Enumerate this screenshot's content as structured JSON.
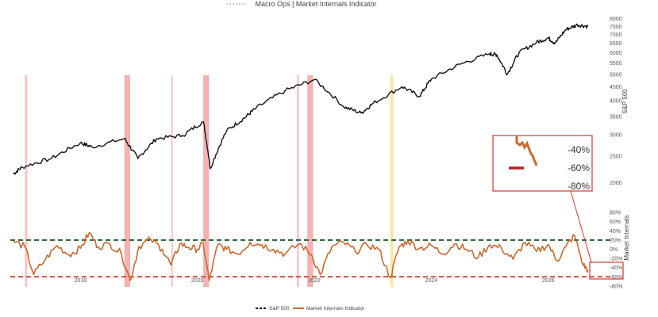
{
  "chart_data": {
    "type": "line",
    "title": "Macro Ops | Market Internals Indicator",
    "x_tick_labels": [
      "2018",
      "2020",
      "2022",
      "2024",
      "2026"
    ],
    "x_range": [
      2016.8,
      2026.9
    ],
    "panels": {
      "top": {
        "ylabel": "S&P 500",
        "scale": "log",
        "ylim": [
          1900,
          8200
        ],
        "tick_labels": [
          "8000",
          "7500",
          "7000",
          "6500",
          "6000",
          "5500",
          "5000",
          "4500",
          "4000",
          "3500",
          "3000",
          "2500",
          "2000"
        ]
      },
      "bottom": {
        "ylabel": "Market Internals",
        "ylim": [
          -82,
          82
        ],
        "tick_labels": [
          "80%",
          "60%",
          "40%",
          "20%",
          "0%",
          "-20%",
          "-40%",
          "-60%",
          "-80%"
        ],
        "threshold_lines": [
          {
            "value": 20,
            "color": "#1e5a28",
            "style": "dashed"
          },
          {
            "value": -60,
            "color": "#c0392b",
            "style": "dashed"
          }
        ]
      }
    },
    "series": [
      {
        "name": "S&P 500",
        "panel": "top",
        "color": "#111111",
        "x": [
          2016.85,
          2017.0,
          2017.5,
          2018.0,
          2018.2,
          2018.75,
          2018.98,
          2019.3,
          2019.75,
          2020.1,
          2020.22,
          2020.5,
          2020.8,
          2021.0,
          2021.5,
          2022.0,
          2022.5,
          2022.8,
          2023.0,
          2023.5,
          2023.8,
          2024.0,
          2024.5,
          2025.0,
          2025.12,
          2025.3,
          2025.5,
          2025.8,
          2026.0,
          2026.12,
          2026.3,
          2026.5,
          2026.68
        ],
        "y": [
          2150,
          2280,
          2450,
          2800,
          2700,
          2900,
          2450,
          2900,
          2980,
          3350,
          2250,
          3100,
          3450,
          3750,
          4350,
          4780,
          3800,
          3600,
          3900,
          4500,
          4150,
          4800,
          5450,
          5950,
          5900,
          5000,
          6000,
          6550,
          6800,
          6500,
          7300,
          7600,
          7500
        ]
      },
      {
        "name": "Market Internals Indicator",
        "panel": "bottom",
        "color": "#c8692e",
        "x": [
          2016.85,
          2017.05,
          2017.2,
          2017.4,
          2017.6,
          2017.8,
          2018.0,
          2018.15,
          2018.3,
          2018.5,
          2018.7,
          2018.85,
          2019.0,
          2019.2,
          2019.4,
          2019.55,
          2019.7,
          2019.85,
          2020.0,
          2020.1,
          2020.2,
          2020.35,
          2020.5,
          2020.7,
          2020.9,
          2021.1,
          2021.3,
          2021.5,
          2021.75,
          2021.95,
          2022.1,
          2022.3,
          2022.5,
          2022.7,
          2022.9,
          2023.1,
          2023.3,
          2023.45,
          2023.6,
          2023.8,
          2024.0,
          2024.2,
          2024.4,
          2024.6,
          2024.8,
          2025.0,
          2025.2,
          2025.4,
          2025.6,
          2025.8,
          2026.0,
          2026.15,
          2026.3,
          2026.45,
          2026.6,
          2026.68
        ],
        "y": [
          18,
          5,
          -55,
          -22,
          8,
          -12,
          2,
          36,
          5,
          12,
          -10,
          -68,
          6,
          22,
          0,
          -35,
          12,
          4,
          0,
          12,
          -68,
          10,
          0,
          -10,
          15,
          10,
          0,
          -10,
          12,
          -12,
          -55,
          5,
          15,
          -5,
          10,
          0,
          -62,
          5,
          18,
          2,
          8,
          -10,
          12,
          0,
          -18,
          10,
          2,
          -22,
          15,
          -5,
          10,
          -25,
          5,
          30,
          -35,
          -45
        ]
      }
    ],
    "highlight_bands": [
      {
        "from": 2017.05,
        "to": 2017.09,
        "color": "#f6b8b8"
      },
      {
        "from": 2018.75,
        "to": 2018.85,
        "color": "#f2a5a5"
      },
      {
        "from": 2019.55,
        "to": 2019.58,
        "color": "#f6c2c2"
      },
      {
        "from": 2020.1,
        "to": 2020.2,
        "color": "#f2a5a5"
      },
      {
        "from": 2021.7,
        "to": 2021.74,
        "color": "#f6c2c2"
      },
      {
        "from": 2021.88,
        "to": 2021.98,
        "color": "#f2a5a5"
      },
      {
        "from": 2023.3,
        "to": 2023.35,
        "color": "#f4e48a"
      }
    ],
    "inset": {
      "tick_labels": [
        "-40%",
        "-60%",
        "-80%"
      ]
    },
    "legend": {
      "placement": "bottom-center"
    }
  }
}
